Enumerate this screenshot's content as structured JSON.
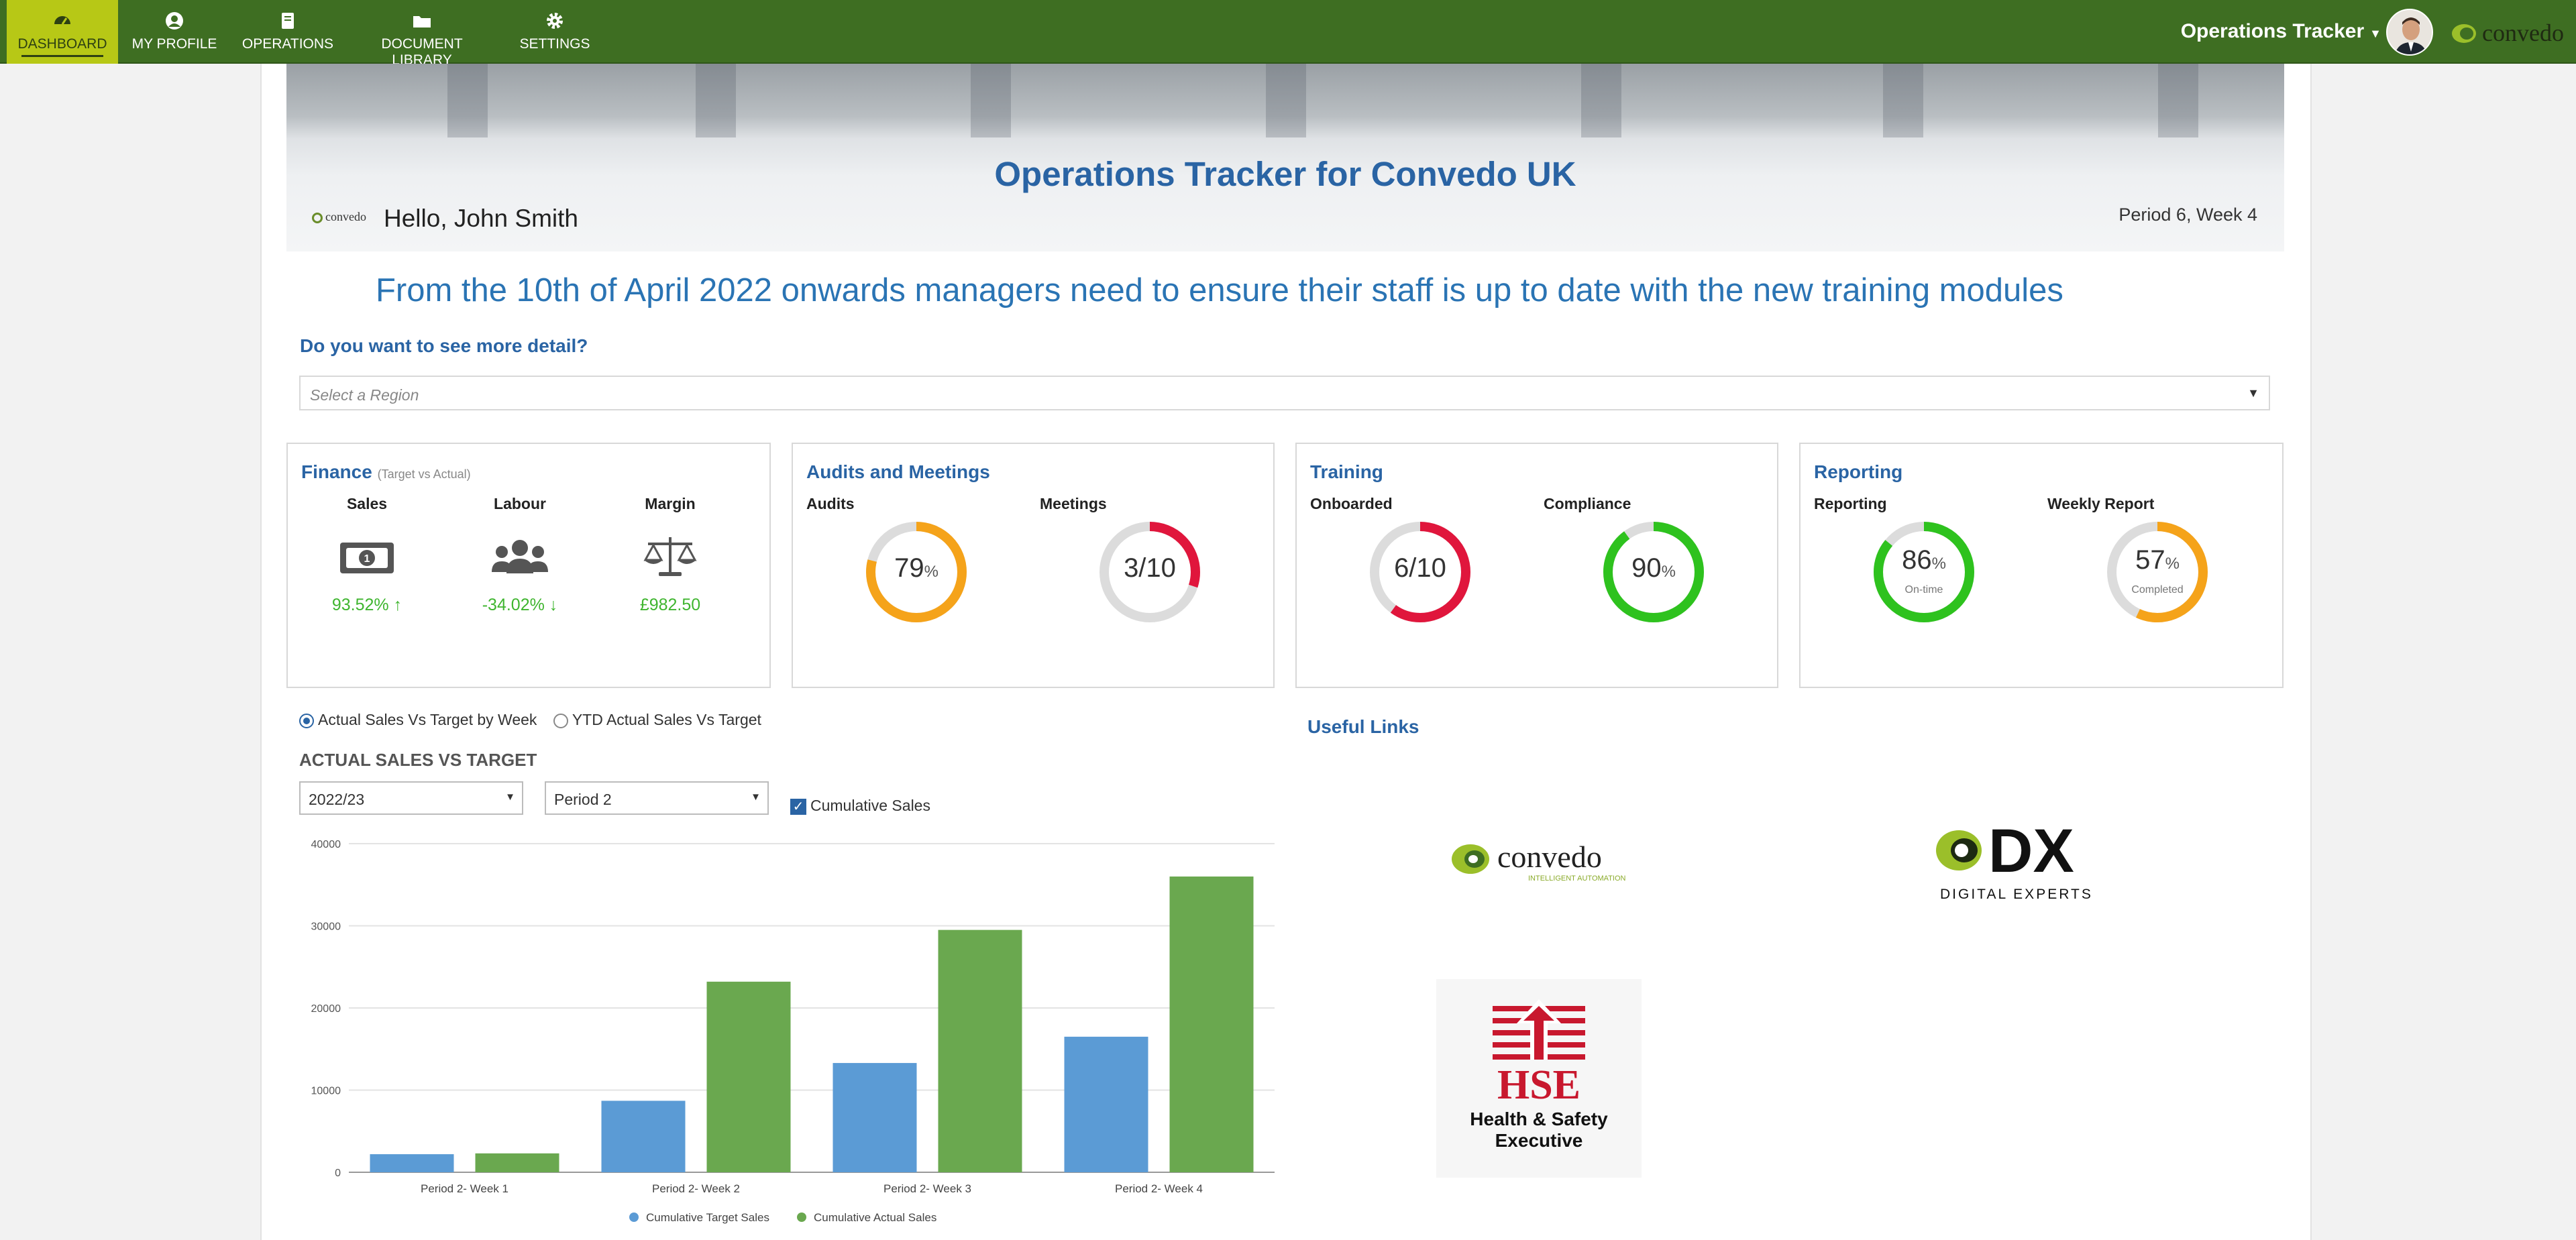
{
  "nav": {
    "items": [
      {
        "label": "DASHBOARD",
        "icon": "dashboard-icon",
        "active": true
      },
      {
        "label": "MY PROFILE",
        "icon": "user-icon",
        "active": false
      },
      {
        "label": "OPERATIONS",
        "icon": "book-icon",
        "active": false
      },
      {
        "label": "DOCUMENT LIBRARY",
        "icon": "folder-icon",
        "active": false
      },
      {
        "label": "SETTINGS",
        "icon": "gear-icon",
        "active": false
      }
    ],
    "app_menu": "Operations Tracker",
    "brand": "convedo"
  },
  "hero": {
    "title": "Operations Tracker for Convedo UK",
    "greeting": "Hello, John Smith",
    "period": "Period 6, Week 4",
    "mini_logo": "convedo"
  },
  "announcement": "From the 10th of April 2022 onwards managers need to ensure their staff is up to date with the new training modules",
  "detail": {
    "question": "Do you want to see more detail?",
    "region_placeholder": "Select a Region"
  },
  "cards": {
    "finance": {
      "title": "Finance",
      "subtitle": "(Target vs Actual)",
      "metrics": [
        {
          "label": "Sales",
          "icon": "money-icon",
          "value": "93.52% ↑"
        },
        {
          "label": "Labour",
          "icon": "users-icon",
          "value": "-34.02% ↓"
        },
        {
          "label": "Margin",
          "icon": "scale-icon",
          "value": "£982.50"
        }
      ]
    },
    "audits": {
      "title": "Audits and Meetings",
      "metrics": [
        {
          "label": "Audits",
          "main": "79",
          "unit": "%",
          "fraction": 0.79,
          "color": "#f5a31a",
          "sub": ""
        },
        {
          "label": "Meetings",
          "main": "3/10",
          "unit": "",
          "fraction": 0.3,
          "color": "#e0163c",
          "sub": ""
        }
      ]
    },
    "training": {
      "title": "Training",
      "metrics": [
        {
          "label": "Onboarded",
          "main": "6/10",
          "unit": "",
          "fraction": 0.6,
          "color": "#e0163c",
          "sub": ""
        },
        {
          "label": "Compliance",
          "main": "90",
          "unit": "%",
          "fraction": 0.9,
          "color": "#2ec21e",
          "sub": ""
        }
      ]
    },
    "reporting": {
      "title": "Reporting",
      "metrics": [
        {
          "label": "Reporting",
          "main": "86",
          "unit": "%",
          "fraction": 0.86,
          "color": "#2ec21e",
          "sub": "On-time"
        },
        {
          "label": "Weekly Report",
          "main": "57",
          "unit": "%",
          "fraction": 0.57,
          "color": "#f5a31a",
          "sub": "Completed"
        }
      ]
    }
  },
  "chart_controls": {
    "radio_1": "Actual Sales Vs Target by Week",
    "radio_2": "YTD Actual Sales Vs Target",
    "heading": "ACTUAL SALES VS TARGET",
    "year": "2022/23",
    "period": "Period 2",
    "cumulative_label": "Cumulative Sales",
    "cumulative_checked": true
  },
  "chart_data": {
    "type": "bar",
    "categories": [
      "Period 2- Week 1",
      "Period 2- Week 2",
      "Period 2- Week 3",
      "Period 2- Week 4"
    ],
    "series": [
      {
        "name": "Cumulative Target Sales",
        "color": "#5b9bd5",
        "values": [
          2200,
          8700,
          13300,
          16500
        ]
      },
      {
        "name": "Cumulative Actual Sales",
        "color": "#6aa84f",
        "values": [
          2300,
          23200,
          29500,
          36000
        ]
      }
    ],
    "yticks": [
      "0",
      "10000",
      "20000",
      "30000",
      "40000"
    ],
    "ylim": [
      0,
      40000
    ],
    "grid": true,
    "legend": "bottom"
  },
  "links": {
    "title": "Useful Links",
    "items": [
      {
        "name": "convedo",
        "tagline": "INTELLIGENT AUTOMATION"
      },
      {
        "name": "DX",
        "tagline": "DIGITAL EXPERTS"
      },
      {
        "name": "HSE",
        "tagline": "Health & Safety Executive"
      }
    ]
  }
}
